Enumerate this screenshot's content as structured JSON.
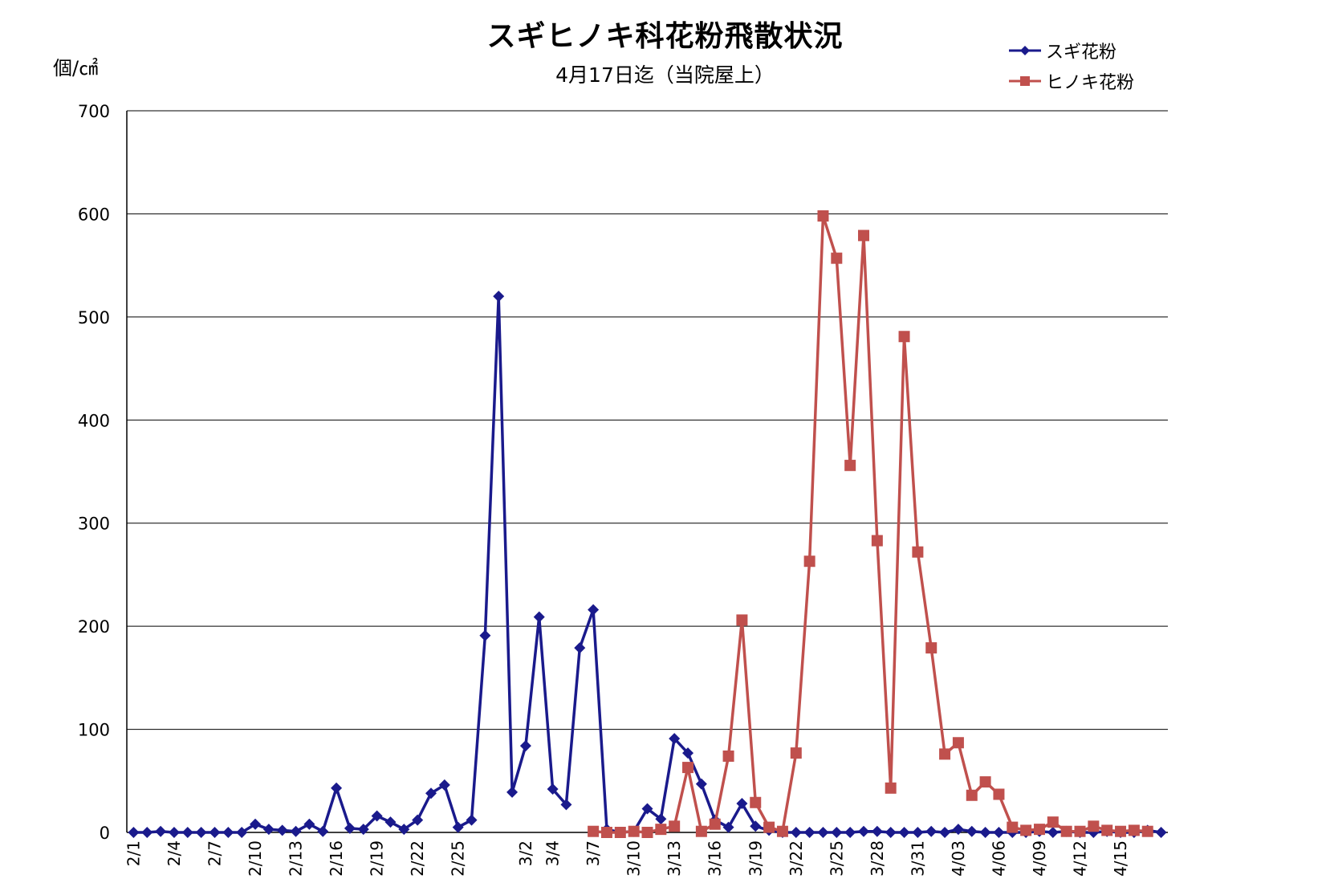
{
  "chart_data": {
    "type": "line",
    "title": "スギヒノキ科花粉飛散状況",
    "subtitle": "4月17日迄（当院屋上）",
    "ylabel": "個/㎠",
    "ylim": [
      0,
      700
    ],
    "yticks": [
      "0",
      "100",
      "200",
      "300",
      "400",
      "500",
      "600",
      "700"
    ],
    "grid": true,
    "legend_position": "top-right",
    "x_tick_labels": [
      {
        "label": "2/1",
        "index": 0
      },
      {
        "label": "2/4",
        "index": 3
      },
      {
        "label": "2/7",
        "index": 6
      },
      {
        "label": "2/10",
        "index": 9
      },
      {
        "label": "2/13",
        "index": 12
      },
      {
        "label": "2/16",
        "index": 15
      },
      {
        "label": "2/19",
        "index": 18
      },
      {
        "label": "2/22",
        "index": 21
      },
      {
        "label": "2/25",
        "index": 24
      },
      {
        "label": "3/2",
        "index": 29
      },
      {
        "label": "3/4",
        "index": 31
      },
      {
        "label": "3/7",
        "index": 34
      },
      {
        "label": "3/10",
        "index": 37
      },
      {
        "label": "3/13",
        "index": 40
      },
      {
        "label": "3/16",
        "index": 43
      },
      {
        "label": "3/19",
        "index": 46
      },
      {
        "label": "3/22",
        "index": 49
      },
      {
        "label": "3/25",
        "index": 52
      },
      {
        "label": "3/28",
        "index": 55
      },
      {
        "label": "3/31",
        "index": 58
      },
      {
        "label": "4/03",
        "index": 61
      },
      {
        "label": "4/06",
        "index": 64
      },
      {
        "label": "4/09",
        "index": 67
      },
      {
        "label": "4/12",
        "index": 70
      },
      {
        "label": "4/15",
        "index": 73
      }
    ],
    "series": [
      {
        "name": "スギ花粉",
        "color": "#1a1a8c",
        "marker": "diamond",
        "start_index": 0,
        "values": [
          0,
          0,
          1,
          0,
          0,
          0,
          0,
          0,
          0,
          8,
          3,
          2,
          1,
          8,
          1,
          43,
          4,
          3,
          16,
          10,
          3,
          12,
          38,
          46,
          5,
          12,
          191,
          520,
          39,
          84,
          209,
          42,
          27,
          179,
          216,
          3,
          0,
          1,
          23,
          13,
          91,
          77,
          47,
          12,
          5,
          28,
          6,
          2,
          0,
          0,
          0,
          0,
          0,
          0,
          1,
          1,
          0,
          0,
          0,
          1,
          0,
          3,
          1,
          0,
          0,
          0,
          0,
          1,
          0,
          1,
          0,
          0,
          1,
          0,
          0,
          2,
          0
        ]
      },
      {
        "name": "ヒノキ花粉",
        "color": "#c0504d",
        "marker": "square",
        "start_index": 34,
        "values": [
          1,
          0,
          0,
          1,
          0,
          3,
          6,
          63,
          1,
          8,
          74,
          206,
          29,
          5,
          1,
          77,
          263,
          598,
          557,
          356,
          579,
          283,
          43,
          481,
          272,
          179,
          76,
          87,
          36,
          49,
          37,
          5,
          2,
          3,
          10,
          1,
          1,
          6,
          2,
          1,
          2,
          1
        ]
      }
    ]
  }
}
